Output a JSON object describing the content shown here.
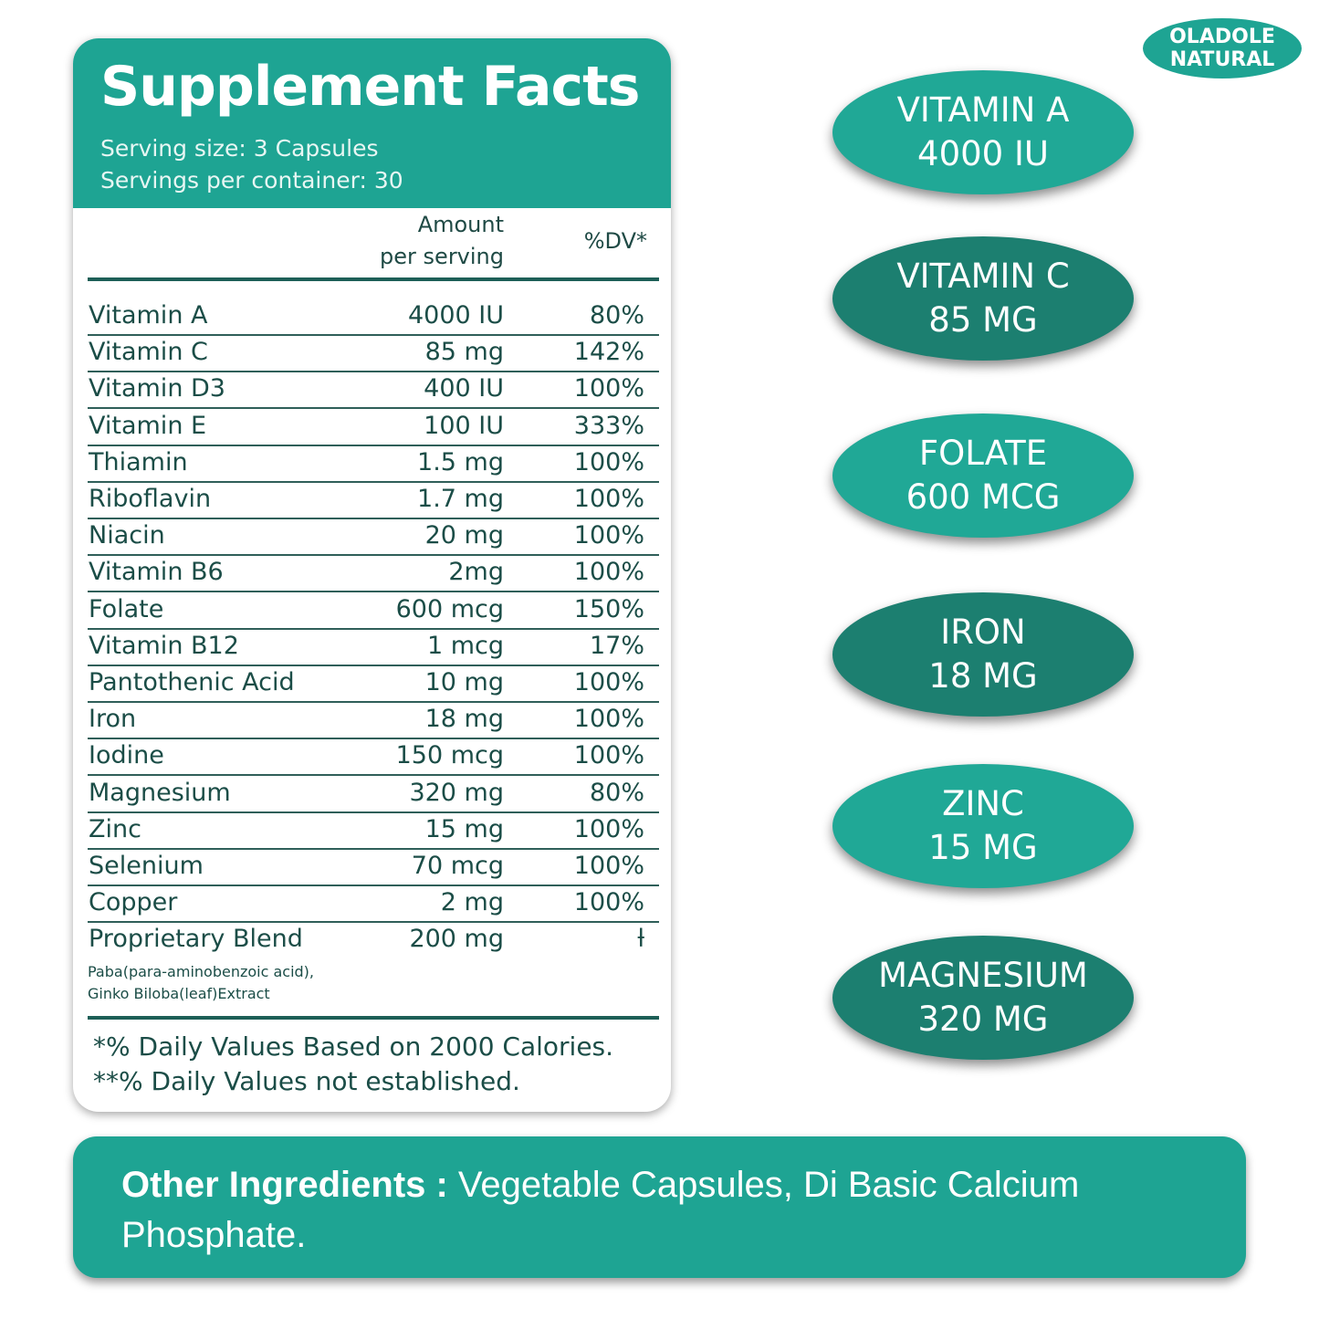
{
  "brand": {
    "line1": "OLADOLE",
    "line2": "NATURAL"
  },
  "facts": {
    "title": "Supplement Facts",
    "serving_size": "Serving size: 3 Capsules",
    "servings_per_container": "Servings per container: 30",
    "columns": {
      "amount_line1": "Amount",
      "amount_line2": "per serving",
      "dv": "%DV*"
    },
    "rows": [
      [
        "Vitamin A",
        "4000 IU",
        "80%"
      ],
      [
        "Vitamin C",
        "85 mg",
        "142%"
      ],
      [
        "Vitamin D3",
        "400 IU",
        "100%"
      ],
      [
        "Vitamin E",
        "100 IU",
        "333%"
      ],
      [
        "Thiamin",
        "1.5 mg",
        "100%"
      ],
      [
        "Riboflavin",
        "1.7 mg",
        "100%"
      ],
      [
        "Niacin",
        "20 mg",
        "100%"
      ],
      [
        "Vitamin B6",
        "2mg",
        "100%"
      ],
      [
        "Folate",
        "600 mcg",
        "150%"
      ],
      [
        "Vitamin B12",
        "1 mcg",
        "17%"
      ],
      [
        "Pantothenic Acid",
        "10 mg",
        "100%"
      ],
      [
        "Iron",
        "18 mg",
        "100%"
      ],
      [
        "Iodine",
        "150 mcg",
        "100%"
      ],
      [
        "Magnesium",
        "320 mg",
        "80%"
      ],
      [
        "Zinc",
        "15 mg",
        "100%"
      ],
      [
        "Selenium",
        "70 mcg",
        "100%"
      ],
      [
        "Copper",
        "2 mg",
        "100%"
      ],
      [
        "Proprietary Blend",
        "200 mg",
        "ƚ"
      ]
    ],
    "blend_ingredients": [
      "Paba(para-aminobenzoic acid),",
      "Ginko Biloba(leaf)Extract"
    ],
    "footnotes": [
      "*% Daily  Values Based on 2000 Calories.",
      "**% Daily  Values not established."
    ]
  },
  "badges": [
    [
      "VITAMIN A",
      "4000 IU"
    ],
    [
      "VITAMIN C",
      "85 MG"
    ],
    [
      "FOLATE",
      "600 MCG"
    ],
    [
      "IRON",
      "18 MG"
    ],
    [
      "ZINC",
      "15 MG"
    ],
    [
      "MAGNESIUM",
      "320 MG"
    ]
  ],
  "other_ingredients": {
    "label": "Other Ingredients :",
    "text": " Vegetable Capsules, Di Basic Calcium Phosphate."
  }
}
